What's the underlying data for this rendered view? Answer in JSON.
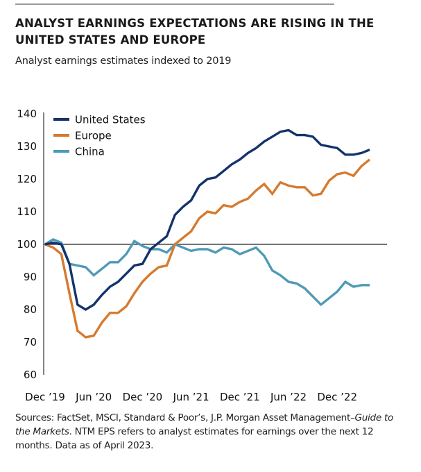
{
  "header": {
    "title": "ANALYST EARNINGS EXPECTATIONS ARE RISING IN THE UNITED STATES AND EUROPE",
    "subtitle": "Analyst earnings estimates indexed to 2019"
  },
  "footer": {
    "part1": "Sources: FactSet, MSCI, Standard & Poor’s, J.P. Morgan Asset Management–",
    "italic": "Guide to the Markets",
    "part2": ". NTM EPS refers to analyst estimates for earnings over the next 12 months. Data as of April 2023."
  },
  "chart_data": {
    "type": "line",
    "title": "ANALYST EARNINGS EXPECTATIONS ARE RISING IN THE UNITED STATES AND EUROPE",
    "subtitle": "Analyst earnings estimates indexed to 2019",
    "xlabel": "",
    "ylabel": "",
    "ylim": [
      60,
      140
    ],
    "yticks": [
      60,
      70,
      80,
      90,
      100,
      110,
      120,
      130,
      140
    ],
    "xtick_labels": [
      "Dec ’19",
      "Jun ’20",
      "Dec ’20",
      "Jun ’21",
      "Dec ’21",
      "Jun ’22",
      "Dec ’22"
    ],
    "xtick_index": [
      0,
      6,
      12,
      18,
      24,
      30,
      36
    ],
    "reference_line": 100,
    "legend_position": "top-left",
    "grid": false,
    "x_count": 41,
    "series": [
      {
        "name": "United States",
        "color": "#14336b",
        "values": [
          100,
          100.5,
          100,
          94,
          81.5,
          80,
          81.5,
          84.5,
          87,
          88.5,
          91,
          93.5,
          94,
          98.5,
          100.5,
          102.5,
          109,
          111.5,
          113.5,
          118,
          120,
          120.5,
          122.5,
          124.5,
          126,
          128,
          129.5,
          131.5,
          133,
          134.5,
          135,
          133.5,
          133.5,
          133,
          130.5,
          130,
          129.5,
          127.5,
          127.5,
          128,
          129
        ]
      },
      {
        "name": "Europe",
        "color": "#d67a2f",
        "values": [
          100,
          99,
          97,
          85,
          73.5,
          71.5,
          72,
          76,
          79,
          79,
          81,
          85,
          88.5,
          91,
          93,
          93.5,
          100,
          102,
          104,
          108,
          110,
          109.5,
          112,
          111.5,
          113,
          114,
          116.5,
          118.5,
          115.5,
          119,
          118,
          117.5,
          117.5,
          115,
          115.5,
          119.5,
          121.5,
          122,
          121,
          124,
          126
        ]
      },
      {
        "name": "China",
        "color": "#4f9ab6",
        "values": [
          100,
          101.5,
          100.5,
          94,
          93.5,
          93,
          90.5,
          92.5,
          94.5,
          94.5,
          97,
          101,
          99.5,
          98.5,
          98.5,
          97.5,
          100,
          99,
          98,
          98.5,
          98.5,
          97.5,
          99,
          98.5,
          97,
          98,
          99,
          96.5,
          92,
          90.5,
          88.5,
          88,
          86.5,
          84,
          81.5,
          83.5,
          85.5,
          88.5,
          87,
          87.5,
          87.5
        ]
      }
    ]
  }
}
